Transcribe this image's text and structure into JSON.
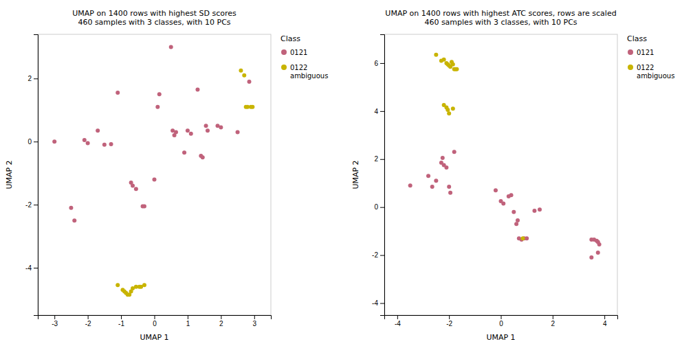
{
  "chart_data": [
    {
      "type": "scatter",
      "title": "UMAP on 1400 rows with highest SD scores\n460 samples with 3 classes, with 10 PCs",
      "x_label": "UMAP 1",
      "y_label": "UMAP 2",
      "xlim": [
        -3.5,
        3.5
      ],
      "ylim": [
        -5.5,
        3.4
      ],
      "xticks": [
        -3,
        -2,
        -1,
        0,
        1,
        2,
        3
      ],
      "yticks": [
        -4,
        -2,
        0,
        2
      ],
      "grid": false,
      "legend": "right",
      "legend_title": "Class",
      "series": [
        {
          "name": "0121",
          "color": "#C0627B",
          "x": [
            -3.0,
            -2.5,
            -2.4,
            -2.1,
            -2.0,
            -1.7,
            -1.5,
            -1.3,
            -1.1,
            -0.7,
            -0.65,
            -0.55,
            -0.35,
            -0.3,
            0.0,
            0.1,
            0.15,
            0.5,
            0.55,
            0.6,
            0.65,
            0.9,
            1.0,
            1.1,
            1.3,
            1.4,
            1.45,
            1.55,
            1.6,
            1.9,
            2.0,
            2.5,
            2.85
          ],
          "values": [
            0.0,
            -2.1,
            -2.5,
            0.05,
            -0.05,
            0.35,
            -0.1,
            -0.08,
            1.55,
            -1.3,
            -1.4,
            -1.5,
            -2.05,
            -2.05,
            -1.2,
            1.1,
            1.5,
            3.0,
            0.35,
            0.2,
            0.3,
            -0.35,
            0.35,
            0.25,
            1.65,
            -0.45,
            -0.5,
            0.5,
            0.35,
            0.5,
            0.45,
            0.3,
            1.9
          ]
        },
        {
          "name": "0122\nambiguous",
          "color": "#C8B400",
          "x": [
            -1.1,
            -0.95,
            -0.9,
            -0.85,
            -0.8,
            -0.75,
            -0.7,
            -0.65,
            -0.55,
            -0.45,
            -0.4,
            -0.3,
            2.6,
            2.7,
            2.75,
            2.8,
            2.9,
            2.95
          ],
          "values": [
            -4.55,
            -4.7,
            -4.75,
            -4.8,
            -4.85,
            -4.85,
            -4.75,
            -4.65,
            -4.6,
            -4.6,
            -4.6,
            -4.55,
            2.25,
            2.1,
            1.1,
            1.1,
            1.1,
            1.1
          ]
        }
      ]
    },
    {
      "type": "scatter",
      "title": "UMAP on 1400 rows with highest ATC scores, rows are scaled\n460 samples with 3 classes, with 10 PCs",
      "x_label": "UMAP 1",
      "y_label": "UMAP 2",
      "xlim": [
        -4.5,
        4.5
      ],
      "ylim": [
        -4.5,
        7.2
      ],
      "xticks": [
        -4,
        -2,
        0,
        2,
        4
      ],
      "yticks": [
        -4,
        -2,
        0,
        2,
        4,
        6
      ],
      "grid": false,
      "legend": "right",
      "legend_title": "Class",
      "series": [
        {
          "name": "0121",
          "color": "#C0627B",
          "x": [
            -3.5,
            -2.8,
            -2.65,
            -2.5,
            -2.3,
            -2.25,
            -2.2,
            -2.1,
            -2.0,
            -1.95,
            -1.8,
            -0.2,
            0.0,
            0.1,
            0.3,
            0.4,
            0.5,
            0.6,
            0.65,
            0.7,
            0.8,
            0.9,
            1.0,
            1.3,
            1.5,
            3.5,
            3.6,
            3.7,
            3.75,
            3.8,
            3.5,
            3.75
          ],
          "values": [
            0.9,
            1.3,
            0.85,
            1.1,
            1.85,
            2.05,
            1.75,
            1.65,
            0.85,
            0.6,
            2.3,
            0.7,
            0.25,
            0.15,
            0.45,
            0.5,
            -0.2,
            -0.7,
            -0.55,
            -1.3,
            -1.35,
            -1.3,
            -1.3,
            -0.15,
            -0.1,
            -1.35,
            -1.35,
            -1.4,
            -1.45,
            -1.55,
            -2.1,
            -1.9
          ]
        },
        {
          "name": "0122\nambiguous",
          "color": "#C8B400",
          "x": [
            -2.5,
            -2.3,
            -2.2,
            -2.1,
            -2.05,
            -2.0,
            -1.95,
            -1.9,
            -1.85,
            -1.8,
            -1.75,
            -1.7,
            -2.2,
            -2.1,
            -2.05,
            -2.0,
            -1.85,
            0.85
          ],
          "values": [
            6.35,
            6.1,
            6.15,
            6.0,
            5.95,
            5.9,
            5.85,
            6.05,
            5.95,
            5.75,
            5.75,
            5.75,
            4.25,
            4.15,
            4.05,
            3.9,
            4.1,
            -1.3
          ]
        }
      ]
    }
  ]
}
